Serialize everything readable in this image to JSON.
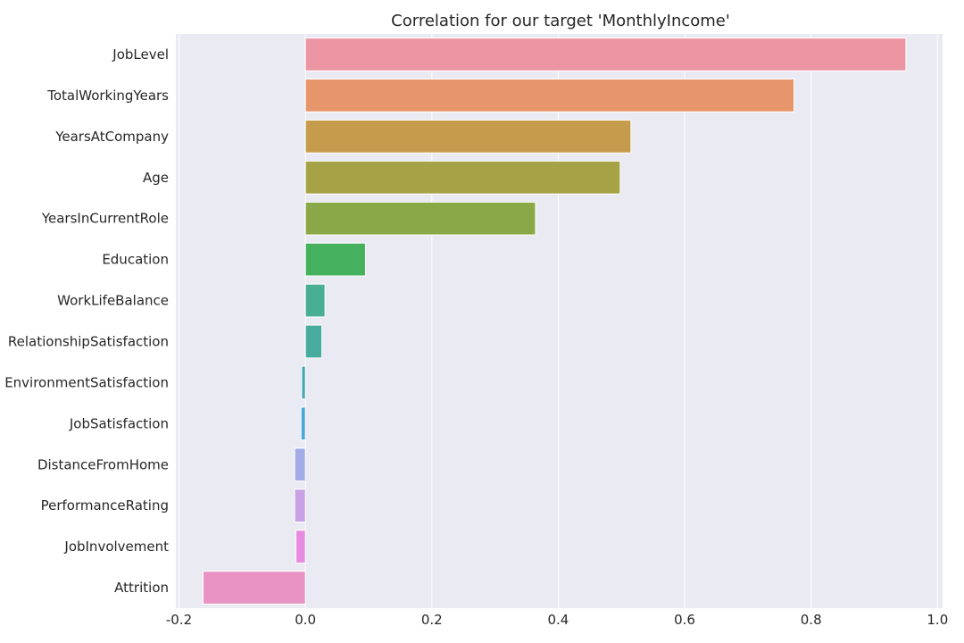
{
  "chart_data": {
    "type": "bar",
    "orientation": "horizontal",
    "title": "Correlation for our target 'MonthlyIncome'",
    "xlabel": "",
    "ylabel": "",
    "xlim": [
      -0.205,
      1.008
    ],
    "xticks": [
      -0.2,
      0.0,
      0.2,
      0.4,
      0.6,
      0.8,
      1.0
    ],
    "xtick_labels": [
      "-0.2",
      "0.0",
      "0.2",
      "0.4",
      "0.6",
      "0.8",
      "1.0"
    ],
    "grid": true,
    "background": "#eaeaf2",
    "categories": [
      "JobLevel",
      "TotalWorkingYears",
      "YearsAtCompany",
      "Age",
      "YearsInCurrentRole",
      "Education",
      "WorkLifeBalance",
      "RelationshipSatisfaction",
      "EnvironmentSatisfaction",
      "JobSatisfaction",
      "DistanceFromHome",
      "PerformanceRating",
      "JobInvolvement",
      "Attrition"
    ],
    "values": [
      0.95,
      0.773,
      0.515,
      0.498,
      0.364,
      0.095,
      0.031,
      0.026,
      -0.006,
      -0.007,
      -0.017,
      -0.017,
      -0.015,
      -0.162
    ],
    "colors": [
      "#ed96a3",
      "#e6966a",
      "#c49c4b",
      "#a5a346",
      "#8ba848",
      "#45b15f",
      "#49af94",
      "#47ab9e",
      "#48a5b3",
      "#4ba6d9",
      "#a3abe6",
      "#c8a0e4",
      "#e78be1",
      "#e993c5"
    ]
  }
}
